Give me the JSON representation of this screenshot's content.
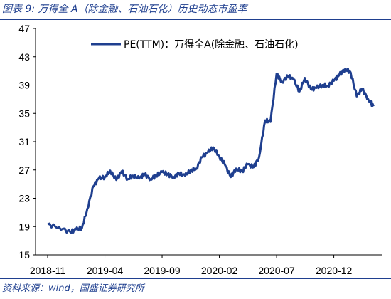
{
  "figure": {
    "title": "图表 9:  万得全 A（除金融、石油石化）历史动态市盈率",
    "source": "资料来源：wind，国盛证券研究所"
  },
  "colors": {
    "line": "#1f3f8f",
    "accent": "#1f3f8f"
  },
  "chart_data": {
    "type": "line",
    "title": "",
    "xlabel": "",
    "ylabel": "",
    "ylim": [
      15,
      47
    ],
    "yticks": [
      15,
      19,
      23,
      27,
      31,
      35,
      39,
      43,
      47
    ],
    "x_tick_labels": [
      "2018-11",
      "2019-04",
      "2019-09",
      "2020-02",
      "2020-07",
      "2020-12"
    ],
    "x_range": [
      "2018-11",
      "2021-04"
    ],
    "grid": false,
    "legend": "top-center",
    "series": [
      {
        "name": "PE(TTM)：万得全A(除金融、石油石化)",
        "x": [
          "2018-11",
          "2018-12",
          "2019-01",
          "2019-01-15",
          "2019-02",
          "2019-02-15",
          "2019-03",
          "2019-03-15",
          "2019-04",
          "2019-04-15",
          "2019-05",
          "2019-05-15",
          "2019-06",
          "2019-06-15",
          "2019-07",
          "2019-07-15",
          "2019-08",
          "2019-08-15",
          "2019-09",
          "2019-09-15",
          "2019-10",
          "2019-10-15",
          "2019-11",
          "2019-11-15",
          "2019-12",
          "2019-12-15",
          "2020-01",
          "2020-01-15",
          "2020-02",
          "2020-02-15",
          "2020-03",
          "2020-03-15",
          "2020-04",
          "2020-04-15",
          "2020-05",
          "2020-05-15",
          "2020-06",
          "2020-06-15",
          "2020-07",
          "2020-07-15",
          "2020-08",
          "2020-08-15",
          "2020-09",
          "2020-09-15",
          "2020-10",
          "2020-10-15",
          "2020-11",
          "2020-11-15",
          "2020-12",
          "2020-12-15",
          "2021-01",
          "2021-01-15",
          "2021-02",
          "2021-02-15",
          "2021-03",
          "2021-03-15"
        ],
        "values": [
          19.3,
          18.9,
          18.2,
          18.6,
          18.8,
          21.5,
          24.7,
          25.8,
          26.0,
          26.9,
          25.6,
          26.8,
          25.7,
          26.2,
          25.8,
          26.4,
          25.7,
          26.2,
          26.7,
          26.4,
          26.0,
          26.5,
          26.2,
          26.9,
          27.2,
          28.8,
          29.5,
          30.2,
          28.9,
          27.8,
          26.0,
          27.2,
          26.8,
          27.8,
          27.4,
          28.8,
          34.0,
          33.8,
          40.6,
          39.4,
          40.3,
          39.8,
          38.1,
          40.0,
          38.4,
          38.6,
          39.0,
          38.9,
          39.6,
          40.4,
          41.3,
          40.8,
          37.4,
          38.5,
          37.0,
          36.0
        ]
      }
    ]
  }
}
